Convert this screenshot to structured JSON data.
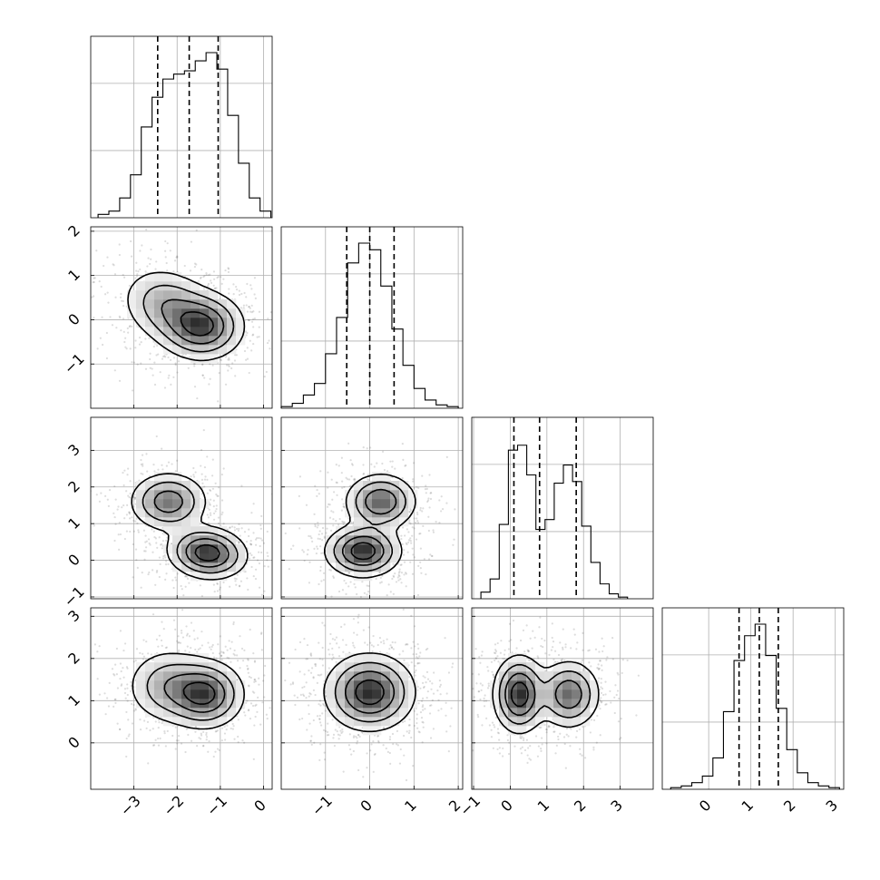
{
  "chart_data": {
    "type": "corner",
    "grid": true,
    "quantiles": [
      0.16,
      0.5,
      0.84
    ],
    "parameters": [
      {
        "range": [
          -4.0,
          0.2
        ],
        "ticks": [
          -3,
          -2,
          -1,
          0
        ],
        "tick_labels": [
          "−3",
          "−2",
          "−1",
          "0"
        ],
        "hist": {
          "bin_edges": [
            -3.83,
            -3.58,
            -3.33,
            -3.08,
            -2.83,
            -2.58,
            -2.33,
            -2.08,
            -1.83,
            -1.58,
            -1.33,
            -1.08,
            -0.83,
            -0.58,
            -0.33,
            -0.08,
            0.17
          ],
          "counts": [
            0.02,
            0.04,
            0.12,
            0.26,
            0.55,
            0.73,
            0.84,
            0.87,
            0.89,
            0.95,
            1.0,
            0.9,
            0.62,
            0.33,
            0.12,
            0.04
          ]
        },
        "quantile_values": [
          -2.45,
          -1.72,
          -1.05
        ]
      },
      {
        "range": [
          -2.0,
          2.1
        ],
        "ticks": [
          -1,
          0,
          1,
          2
        ],
        "tick_labels": [
          "−1",
          "0",
          "1",
          "2"
        ],
        "hist": {
          "bin_edges": [
            -2.0,
            -1.75,
            -1.5,
            -1.25,
            -1.0,
            -0.75,
            -0.5,
            -0.25,
            0.0,
            0.25,
            0.5,
            0.75,
            1.0,
            1.25,
            1.5,
            1.75,
            2.0
          ],
          "counts": [
            0.01,
            0.03,
            0.08,
            0.15,
            0.33,
            0.55,
            0.88,
            1.0,
            0.96,
            0.74,
            0.48,
            0.26,
            0.12,
            0.05,
            0.02,
            0.01
          ]
        },
        "quantile_values": [
          -0.52,
          0.0,
          0.55
        ]
      },
      {
        "range": [
          -1.05,
          3.9
        ],
        "ticks": [
          -1,
          0,
          1,
          2,
          3
        ],
        "tick_labels": [
          "−1",
          "0",
          "1",
          "2",
          "3"
        ],
        "hist": {
          "bin_edges": [
            -0.8,
            -0.55,
            -0.3,
            -0.05,
            0.2,
            0.45,
            0.7,
            0.95,
            1.2,
            1.45,
            1.7,
            1.95,
            2.2,
            2.45,
            2.7,
            2.95,
            3.2
          ],
          "counts": [
            0.04,
            0.12,
            0.45,
            0.9,
            0.93,
            0.75,
            0.42,
            0.48,
            0.7,
            0.81,
            0.71,
            0.44,
            0.22,
            0.09,
            0.03,
            0.01
          ]
        },
        "quantile_values": [
          0.1,
          0.8,
          1.8
        ]
      },
      {
        "range": [
          -1.1,
          3.2
        ],
        "ticks": [
          0,
          1,
          2,
          3
        ],
        "tick_labels": [
          "0",
          "1",
          "2",
          "3"
        ],
        "hist": {
          "bin_edges": [
            -0.9,
            -0.65,
            -0.4,
            -0.15,
            0.1,
            0.35,
            0.6,
            0.85,
            1.1,
            1.35,
            1.6,
            1.85,
            2.1,
            2.35,
            2.6,
            2.85,
            3.1
          ],
          "counts": [
            0.01,
            0.02,
            0.04,
            0.08,
            0.19,
            0.47,
            0.78,
            0.93,
            1.0,
            0.81,
            0.49,
            0.24,
            0.1,
            0.04,
            0.02,
            0.01
          ]
        },
        "quantile_values": [
          0.72,
          1.2,
          1.65
        ]
      }
    ],
    "pairs_2d": [
      {
        "x_param": 0,
        "y_param": 1,
        "clusters": [
          {
            "mean": [
              -1.4,
              -0.15
            ],
            "std": [
              0.48,
              0.38
            ],
            "rho": 0.0,
            "weight": 0.55
          },
          {
            "mean": [
              -2.2,
              0.3
            ],
            "std": [
              0.55,
              0.45
            ],
            "rho": -0.2,
            "weight": 0.45
          }
        ]
      },
      {
        "x_param": 0,
        "y_param": 2,
        "clusters": [
          {
            "mean": [
              -1.3,
              0.2
            ],
            "std": [
              0.45,
              0.35
            ],
            "rho": -0.1,
            "weight": 0.55
          },
          {
            "mean": [
              -2.2,
              1.6
            ],
            "std": [
              0.45,
              0.4
            ],
            "rho": 0.0,
            "weight": 0.45
          }
        ]
      },
      {
        "x_param": 1,
        "y_param": 2,
        "clusters": [
          {
            "mean": [
              -0.15,
              0.25
            ],
            "std": [
              0.42,
              0.35
            ],
            "rho": 0.0,
            "weight": 0.55
          },
          {
            "mean": [
              0.25,
              1.6
            ],
            "std": [
              0.4,
              0.38
            ],
            "rho": 0.0,
            "weight": 0.45
          }
        ]
      },
      {
        "x_param": 0,
        "y_param": 3,
        "clusters": [
          {
            "mean": [
              -1.35,
              1.15
            ],
            "std": [
              0.45,
              0.4
            ],
            "rho": 0.0,
            "weight": 0.6
          },
          {
            "mean": [
              -2.2,
              1.35
            ],
            "std": [
              0.5,
              0.45
            ],
            "rho": 0.0,
            "weight": 0.4
          }
        ]
      },
      {
        "x_param": 1,
        "y_param": 3,
        "clusters": [
          {
            "mean": [
              0.0,
              1.2
            ],
            "std": [
              0.5,
              0.45
            ],
            "rho": 0.0,
            "weight": 1.0
          }
        ]
      },
      {
        "x_param": 2,
        "y_param": 3,
        "clusters": [
          {
            "mean": [
              0.25,
              1.15
            ],
            "std": [
              0.35,
              0.45
            ],
            "rho": 0.0,
            "weight": 0.55
          },
          {
            "mean": [
              1.6,
              1.15
            ],
            "std": [
              0.42,
              0.4
            ],
            "rho": 0.0,
            "weight": 0.45
          }
        ]
      }
    ]
  }
}
